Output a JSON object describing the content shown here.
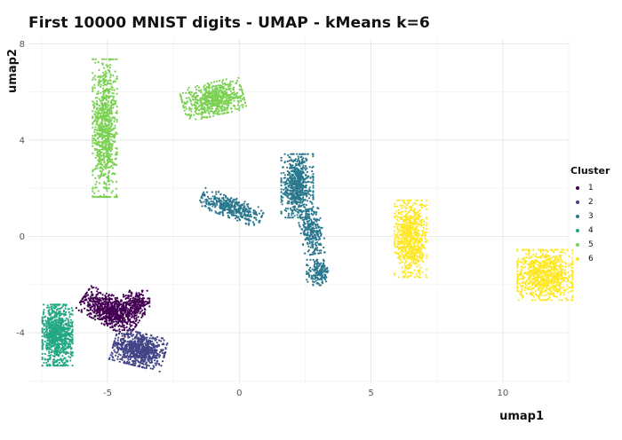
{
  "chart_data": {
    "type": "scatter",
    "title": "First 10000 MNIST digits - UMAP - kMeans k=6",
    "xlabel": "umap1",
    "ylabel": "umap2",
    "xlim": [
      -8.0,
      12.5
    ],
    "ylim": [
      -6.1,
      8.2
    ],
    "x_ticks": [
      -5,
      0,
      5,
      10
    ],
    "y_ticks": [
      -4,
      0,
      4,
      8
    ],
    "grid": true,
    "legend": {
      "title": "Cluster",
      "position": "right"
    },
    "series": [
      {
        "name": "1",
        "color": "#440154",
        "clusters": [
          {
            "shape": "ellipse",
            "center": [
              -4.9,
              -3.1
            ],
            "spread": [
              1.05,
              0.55
            ],
            "rotation_deg": -32,
            "n": 750
          },
          {
            "shape": "ellipse",
            "center": [
              -3.9,
              -2.75
            ],
            "spread": [
              0.45,
              0.45
            ],
            "rotation_deg": 0,
            "n": 200
          }
        ]
      },
      {
        "name": "2",
        "color": "#414487",
        "clusters": [
          {
            "shape": "ellipse",
            "center": [
              -3.8,
              -4.7
            ],
            "spread": [
              0.9,
              0.62
            ],
            "rotation_deg": -15,
            "n": 750
          }
        ]
      },
      {
        "name": "3",
        "color": "#2A788E",
        "clusters": [
          {
            "shape": "ellipse",
            "center": [
              -0.3,
              1.2
            ],
            "spread": [
              1.1,
              0.38
            ],
            "rotation_deg": -22,
            "n": 400
          },
          {
            "shape": "ellipse",
            "center": [
              2.2,
              2.1
            ],
            "spread": [
              0.55,
              1.2
            ],
            "rotation_deg": 0,
            "n": 650
          },
          {
            "shape": "ellipse",
            "center": [
              2.75,
              0.2
            ],
            "spread": [
              0.38,
              0.85
            ],
            "rotation_deg": 10,
            "n": 280
          },
          {
            "shape": "ellipse",
            "center": [
              3.0,
              -1.5
            ],
            "spread": [
              0.4,
              0.48
            ],
            "rotation_deg": 0,
            "n": 170
          }
        ]
      },
      {
        "name": "4",
        "color": "#22A884",
        "clusters": [
          {
            "shape": "ellipse",
            "center": [
              -6.9,
              -4.1
            ],
            "spread": [
              0.52,
              1.15
            ],
            "rotation_deg": 0,
            "n": 900
          }
        ]
      },
      {
        "name": "5",
        "color": "#7AD151",
        "clusters": [
          {
            "shape": "ellipse",
            "center": [
              -5.1,
              4.5
            ],
            "spread": [
              0.42,
              2.6
            ],
            "rotation_deg": 0,
            "n": 850
          },
          {
            "shape": "ellipse",
            "center": [
              -1.0,
              5.7
            ],
            "spread": [
              1.05,
              0.62
            ],
            "rotation_deg": 14,
            "n": 650
          }
        ]
      },
      {
        "name": "6",
        "color": "#FDE725",
        "clusters": [
          {
            "shape": "ellipse",
            "center": [
              6.5,
              -0.1
            ],
            "spread": [
              0.55,
              1.45
            ],
            "rotation_deg": 0,
            "n": 750
          },
          {
            "shape": "ellipse",
            "center": [
              11.6,
              -1.6
            ],
            "spread": [
              0.95,
              0.95
            ],
            "rotation_deg": 0,
            "n": 850
          }
        ]
      }
    ]
  }
}
